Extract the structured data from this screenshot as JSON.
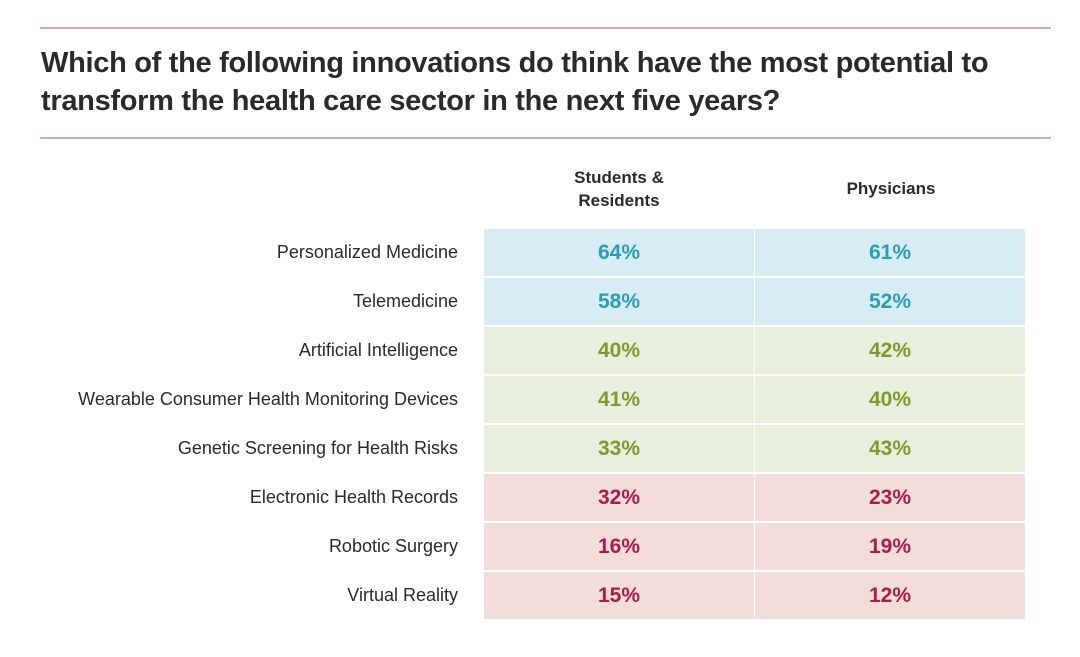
{
  "title": "Which of the following innovations do think have the most potential to transform the health care sector in the next five years?",
  "colors": {
    "blue_bg": "#d8ecf4",
    "blue_text": "#2a9db8",
    "green_bg": "#e9efdf",
    "green_text": "#7f9a2c",
    "red_bg": "#f3dcdc",
    "red_text": "#a81e48"
  },
  "chart_data": {
    "type": "table",
    "title": "Which of the following innovations do think have the most potential to transform the health care sector in the next five years?",
    "columns": [
      "Students & Residents",
      "Physicians"
    ],
    "categories": [
      "Personalized Medicine",
      "Telemedicine",
      "Artificial Intelligence",
      "Wearable Consumer Health Monitoring Devices",
      "Genetic Screening for Health Risks",
      "Electronic Health Records",
      "Robotic Surgery",
      "Virtual Reality"
    ],
    "series": [
      {
        "name": "Students & Residents",
        "values": [
          64,
          58,
          40,
          41,
          33,
          32,
          16,
          15
        ]
      },
      {
        "name": "Physicians",
        "values": [
          61,
          52,
          42,
          40,
          43,
          23,
          19,
          12
        ]
      }
    ],
    "row_groups": [
      "blue",
      "blue",
      "green",
      "green",
      "green",
      "red",
      "red",
      "red"
    ],
    "unit": "%"
  }
}
